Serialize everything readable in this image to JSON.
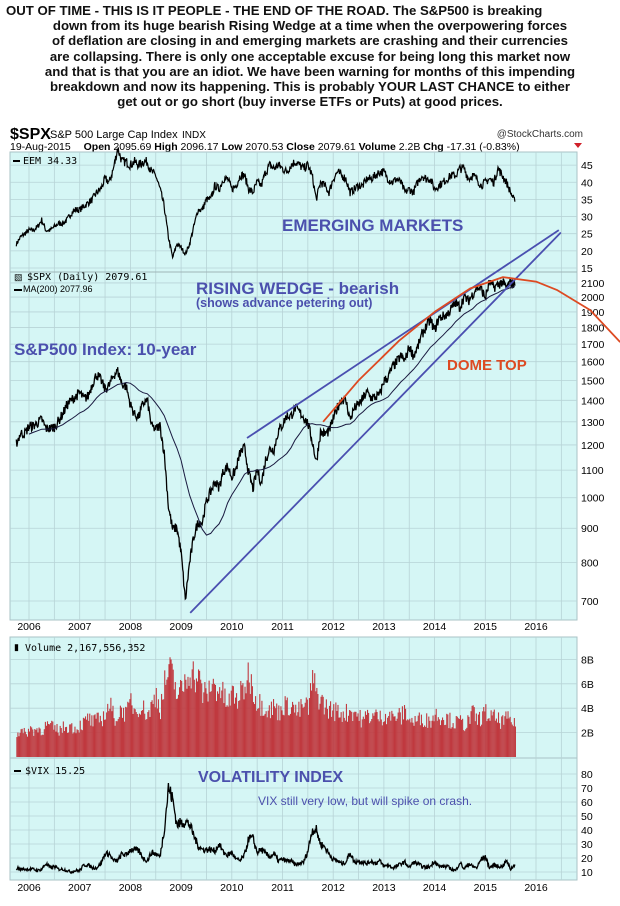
{
  "commentary": {
    "lines": [
      "OUT OF TIME - THIS IS IT PEOPLE - THE END OF THE ROAD. The S&P500 is breaking",
      "down from its huge bearish Rising Wedge at a time when the overpowering forces",
      "of deflation are closing in and emerging markets are crashing and their currencies",
      "are collapsing. There is only one acceptable excuse for being long this market now",
      "and that is that you are an idiot. We have been warning for months of this impending",
      "breakdown and now its happening. This is probably YOUR LAST CHANCE to either",
      "get out or go short (buy inverse ETFs or Puts) at good prices."
    ]
  },
  "header": {
    "symbol": "$SPX",
    "name": "S&P 500 Large Cap Index",
    "exchange": "INDX",
    "brand": "@StockCharts.com",
    "date": "19-Aug-2015",
    "open_label": "Open",
    "open": "2095.69",
    "high_label": "High",
    "high": "2096.17",
    "low_label": "Low",
    "low": "2070.53",
    "close_label": "Close",
    "close": "2079.61",
    "volume_label": "Volume",
    "volume": "2.2B",
    "chg_label": "Chg",
    "chg": "-17.31 (-0.83%)"
  },
  "legends": {
    "eem": "EEM 34.33",
    "spx": "$SPX (Daily) 2079.61",
    "ma": "MA(200) 2077.96",
    "volume": "Volume 2,167,556,352",
    "vix": "$VIX 15.25"
  },
  "annotations": {
    "emerging": "EMERGING MARKETS",
    "wedge": "RISING WEDGE - bearish",
    "wedge_sub": "(shows advance petering out)",
    "spx_title": "S&P500 Index: 10-year",
    "dome": "DOME TOP",
    "vix_title": "VOLATILITY INDEX",
    "vix_note": "VIX still very low, but will spike on crash."
  },
  "colors": {
    "panel_bg": "#d5f6f5",
    "grid": "#b7d3d6",
    "annotation_blue": "#4b50ad",
    "dome_red": "#dd4a22",
    "trend_blue": "#4a4fb0",
    "volume_bar": "#c0393f",
    "down_red": "#d0202a"
  },
  "chart_data": {
    "type": "line",
    "start": 2005.75,
    "step_months": 1,
    "x_ticks": [
      "2006",
      "2007",
      "2008",
      "2009",
      "2010",
      "2011",
      "2012",
      "2013",
      "2014",
      "2015",
      "2016"
    ],
    "spx": {
      "name": "$SPX",
      "scale": "log",
      "ticks": [
        700,
        800,
        900,
        1000,
        1100,
        1200,
        1300,
        1400,
        1500,
        1600,
        1700,
        1800,
        1900,
        2000,
        2100
      ],
      "values": [
        1207,
        1249,
        1248,
        1280,
        1281,
        1295,
        1311,
        1270,
        1270,
        1277,
        1304,
        1336,
        1378,
        1401,
        1418,
        1438,
        1407,
        1421,
        1482,
        1531,
        1503,
        1455,
        1474,
        1527,
        1549,
        1481,
        1468,
        1379,
        1331,
        1323,
        1386,
        1400,
        1280,
        1267,
        1283,
        1166,
        969,
        896,
        903,
        826,
        700,
        798,
        873,
        919,
        919,
        987,
        1021,
        1057,
        1036,
        1096,
        1115,
        1074,
        1104,
        1169,
        1187,
        1089,
        1031,
        1102,
        1049,
        1141,
        1183,
        1181,
        1258,
        1286,
        1327,
        1326,
        1364,
        1345,
        1321,
        1292,
        1219,
        1131,
        1253,
        1247,
        1258,
        1312,
        1366,
        1408,
        1398,
        1310,
        1362,
        1379,
        1407,
        1441,
        1412,
        1416,
        1426,
        1498,
        1515,
        1569,
        1598,
        1631,
        1606,
        1686,
        1633,
        1682,
        1757,
        1806,
        1848,
        1783,
        1859,
        1872,
        1884,
        1924,
        1960,
        1931,
        2003,
        1972,
        2018,
        2068,
        2059,
        1995,
        2105,
        2068,
        2086,
        2107,
        2063,
        2104,
        2080
      ]
    },
    "ma_period_months": 10,
    "eem": {
      "name": "EEM",
      "ylim": [
        15,
        45
      ],
      "ticks": [
        15,
        20,
        25,
        30,
        35,
        40,
        45
      ],
      "values": [
        22,
        24,
        25,
        26,
        26,
        27,
        29,
        26,
        26,
        27,
        28,
        28,
        29,
        31,
        32,
        32,
        33,
        34,
        35,
        37,
        38,
        41,
        40,
        44,
        50,
        46,
        46,
        45,
        46,
        45,
        46,
        46,
        43,
        42,
        38,
        33,
        24,
        18,
        22,
        21,
        19,
        22,
        27,
        32,
        32,
        35,
        35,
        39,
        38,
        41,
        41,
        38,
        39,
        42,
        42,
        38,
        37,
        40,
        39,
        43,
        45,
        44,
        45,
        44,
        43,
        45,
        46,
        45,
        44,
        45,
        42,
        35,
        40,
        39,
        37,
        41,
        43,
        42,
        41,
        37,
        38,
        39,
        39,
        41,
        41,
        42,
        43,
        43,
        41,
        40,
        41,
        40,
        37,
        38,
        37,
        40,
        42,
        41,
        41,
        38,
        39,
        40,
        41,
        42,
        42,
        44,
        44,
        41,
        42,
        41,
        39,
        40,
        41,
        40,
        44,
        42,
        40,
        37,
        34.33
      ]
    },
    "volume": {
      "name": "Volume",
      "unit": "B",
      "ticks": [
        2,
        4,
        6,
        8
      ],
      "tick_labels": [
        "2B",
        "4B",
        "6B",
        "8B"
      ],
      "values": [
        2.0,
        2.1,
        1.9,
        2.3,
        2.2,
        2.3,
        2.2,
        2.6,
        2.5,
        2.3,
        2.2,
        2.4,
        2.5,
        2.5,
        2.3,
        2.6,
        2.8,
        3.2,
        2.8,
        3.0,
        3.1,
        3.6,
        4.3,
        3.2,
        3.4,
        4.0,
        3.4,
        4.7,
        3.8,
        4.3,
        3.9,
        3.5,
        4.2,
        5.2,
        4.0,
        5.9,
        7.1,
        6.4,
        5.1,
        5.4,
        6.4,
        7.3,
        6.6,
        6.4,
        5.3,
        5.0,
        6.0,
        5.7,
        5.6,
        4.9,
        4.2,
        5.2,
        4.7,
        5.1,
        5.8,
        6.9,
        5.5,
        4.5,
        4.3,
        4.1,
        3.8,
        4.2,
        3.6,
        4.3,
        4.1,
        4.4,
        3.7,
        3.8,
        4.3,
        4.0,
        6.3,
        5.2,
        4.7,
        4.1,
        3.9,
        3.8,
        3.7,
        3.6,
        3.6,
        3.8,
        3.7,
        3.3,
        2.9,
        3.5,
        3.3,
        3.4,
        3.2,
        3.4,
        3.5,
        3.2,
        3.4,
        3.3,
        3.8,
        3.0,
        2.9,
        3.0,
        3.2,
        3.0,
        3.0,
        3.5,
        3.4,
        3.3,
        3.1,
        2.9,
        2.8,
        2.9,
        2.6,
        3.0,
        3.6,
        3.0,
        3.3,
        3.6,
        3.3,
        3.2,
        3.0,
        2.9,
        3.1,
        3.0,
        2.5
      ]
    },
    "vix": {
      "name": "$VIX",
      "ylim": [
        10,
        80
      ],
      "ticks": [
        10,
        20,
        30,
        40,
        50,
        60,
        70,
        80
      ],
      "values": [
        13,
        12,
        12,
        12,
        12,
        11,
        12,
        16,
        13,
        14,
        12,
        12,
        11,
        10,
        11,
        11,
        15,
        15,
        13,
        13,
        16,
        23,
        23,
        18,
        18,
        23,
        22,
        26,
        26,
        25,
        20,
        18,
        24,
        23,
        21,
        40,
        70,
        62,
        44,
        45,
        46,
        44,
        36,
        29,
        26,
        26,
        26,
        25,
        30,
        24,
        22,
        24,
        19,
        18,
        22,
        34,
        34,
        24,
        26,
        23,
        21,
        23,
        18,
        19,
        18,
        18,
        15,
        16,
        17,
        25,
        40,
        40,
        30,
        28,
        23,
        19,
        18,
        16,
        17,
        24,
        17,
        18,
        17,
        16,
        18,
        16,
        18,
        14,
        15,
        13,
        14,
        16,
        17,
        13,
        17,
        16,
        14,
        13,
        14,
        18,
        14,
        14,
        14,
        12,
        11,
        17,
        12,
        16,
        14,
        13,
        19,
        21,
        13,
        15,
        14,
        14,
        18,
        12,
        15.25
      ]
    },
    "trendlines": [
      {
        "name": "wedge-upper",
        "from": [
          2010.3,
          1229
        ],
        "to": [
          2016.45,
          2520
        ]
      },
      {
        "name": "wedge-lower",
        "from": [
          2009.18,
          672
        ],
        "to": [
          2016.49,
          2500
        ]
      }
    ],
    "dome_curve": [
      [
        2011.8,
        1300
      ],
      [
        2012.5,
        1500
      ],
      [
        2013.3,
        1720
      ],
      [
        2014.0,
        1900
      ],
      [
        2014.7,
        2060
      ],
      [
        2015.35,
        2143
      ],
      [
        2016.0,
        2110
      ],
      [
        2016.41,
        2050
      ],
      [
        2017.07,
        1912
      ],
      [
        2017.66,
        1712
      ]
    ]
  }
}
